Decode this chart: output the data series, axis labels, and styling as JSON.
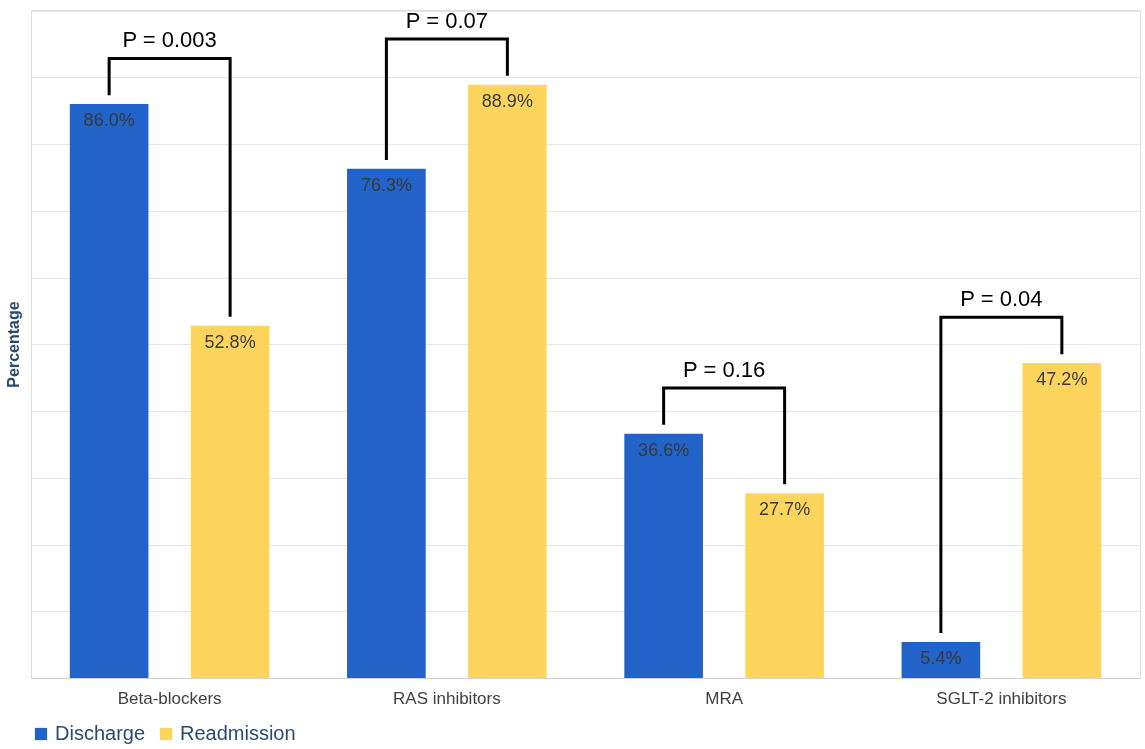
{
  "chart_data": {
    "type": "bar",
    "ylabel": "Percentage",
    "categories": [
      "Beta-blockers",
      "RAS inhibitors",
      "MRA",
      "SGLT-2 inhibitors"
    ],
    "series": [
      {
        "name": "Discharge",
        "color": "#2163c8",
        "values": [
          86.0,
          76.3,
          36.6,
          5.4
        ],
        "value_labels": [
          "86.0%",
          "76.3%",
          "36.6%",
          "5.4%"
        ]
      },
      {
        "name": "Readmission",
        "color": "#fed55c",
        "values": [
          52.8,
          88.9,
          27.7,
          47.2
        ],
        "value_labels": [
          "52.8%",
          "88.9%",
          "27.7%",
          "47.2%"
        ]
      }
    ],
    "grid": "y",
    "legend": "bottom",
    "tick_labels": "x",
    "annotations": [
      "P = 0.003",
      "P = 0.07",
      "P = 0.16",
      "P = 0.04"
    ]
  }
}
